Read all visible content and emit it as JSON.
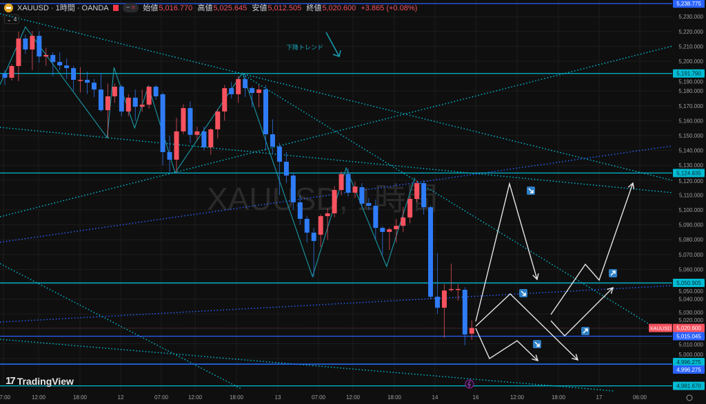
{
  "header": {
    "symbol_title": "XAUUSD · 1時間 · OANDA",
    "open_label": "始値",
    "open": "5,016.770",
    "high_label": "高値",
    "high": "5,025.645",
    "low_label": "安値",
    "low": "5,012.505",
    "close_label": "終値",
    "close": "5,020.600",
    "change": "+3.865 (+0.08%)",
    "indicator_count": "4"
  },
  "watermark": "XAUUSD, 1時間",
  "annotation": {
    "text": "下降トレンド",
    "color": "#17a2b8"
  },
  "branding": "TradingView",
  "colors": {
    "up": "#f7525f",
    "down": "#2f7cf6",
    "cyan": "#00bcd4",
    "blue": "#2962ff",
    "background": "#0f0f0f"
  },
  "chart_data": {
    "type": "candlestick",
    "symbol": "XAUUSD",
    "timeframe": "1時間",
    "ylim": [
      4975,
      5242
    ],
    "y_ticks": [
      5000,
      5010,
      5020,
      5030,
      5040,
      5050,
      5060,
      5070,
      5080,
      5090,
      5100,
      5110,
      5120,
      5130,
      5140,
      5150,
      5160,
      5170,
      5180,
      5190,
      5200,
      5210,
      5220,
      5230
    ],
    "x_tick_labels": [
      "07:00",
      "12:00",
      "18:00",
      "12",
      "07:00",
      "12:00",
      "18:00",
      "13",
      "07:00",
      "12:00",
      "18:00",
      "14",
      "16",
      "12:00",
      "18:00",
      "17",
      "06:00"
    ],
    "candles": [
      [
        5191.7,
        5194,
        5184,
        5188.9
      ],
      [
        5188.9,
        5198,
        5187,
        5196.8
      ],
      [
        5196.8,
        5219.9,
        5186.6,
        5215.3
      ],
      [
        5215.3,
        5218,
        5205,
        5207.9
      ],
      [
        5207.9,
        5220.3,
        5194,
        5217.1
      ],
      [
        5217.1,
        5220.3,
        5199,
        5203.2
      ],
      [
        5203.2,
        5209,
        5197,
        5204.2
      ],
      [
        5204.2,
        5206,
        5190,
        5199.5
      ],
      [
        5199.5,
        5206,
        5194,
        5197.2
      ],
      [
        5197.2,
        5202,
        5188,
        5195.4
      ],
      [
        5195.4,
        5197,
        5180,
        5187.5
      ],
      [
        5187.5,
        5196,
        5179,
        5187.5
      ],
      [
        5187.5,
        5193,
        5178,
        5185.6
      ],
      [
        5185.6,
        5188,
        5176,
        5181.0
      ],
      [
        5181.0,
        5192,
        5166,
        5167.1
      ],
      [
        5167.1,
        5185,
        5148.6,
        5176.4
      ],
      [
        5176.4,
        5185,
        5172,
        5182.9
      ],
      [
        5182.9,
        5184,
        5163,
        5166.2
      ],
      [
        5166.2,
        5178,
        5163,
        5175.5
      ],
      [
        5175.5,
        5181,
        5160,
        5169.4
      ],
      [
        5169.4,
        5181,
        5166,
        5170.8
      ],
      [
        5170.8,
        5183,
        5168,
        5182.9
      ],
      [
        5182.9,
        5184,
        5174,
        5176.4
      ],
      [
        5177.8,
        5179,
        5130,
        5138.9
      ],
      [
        5138.9,
        5150,
        5125.5,
        5133.8
      ],
      [
        5133.8,
        5162,
        5125,
        5152.8
      ],
      [
        5152.8,
        5171,
        5151,
        5168.5
      ],
      [
        5168.5,
        5173,
        5145,
        5150.5
      ],
      [
        5150.5,
        5156,
        5147,
        5152.8
      ],
      [
        5152.8,
        5156,
        5140,
        5142.1
      ],
      [
        5142.1,
        5155,
        5137,
        5154.2
      ],
      [
        5154.2,
        5168,
        5148,
        5166.2
      ],
      [
        5166.2,
        5184,
        5160,
        5181.9
      ],
      [
        5181.9,
        5186,
        5175,
        5177.8
      ],
      [
        5177.8,
        5190,
        5172,
        5188.0
      ],
      [
        5188.0,
        5191,
        5176,
        5181.9
      ],
      [
        5181.9,
        5183,
        5169,
        5178.7
      ],
      [
        5178.7,
        5184,
        5169,
        5181.0
      ],
      [
        5181.0,
        5184,
        5140,
        5150.9
      ],
      [
        5150.9,
        5161,
        5138,
        5142.6
      ],
      [
        5142.6,
        5145,
        5110,
        5132.4
      ],
      [
        5132.4,
        5139,
        5118,
        5123.1
      ],
      [
        5123.1,
        5125,
        5100,
        5105.1
      ],
      [
        5105.1,
        5110,
        5090,
        5094.0
      ],
      [
        5094.0,
        5096,
        5078,
        5084.7
      ],
      [
        5084.7,
        5088,
        5055,
        5079.1
      ],
      [
        5083.3,
        5097,
        5075,
        5095.8
      ],
      [
        5095.8,
        5101,
        5080,
        5097.7
      ],
      [
        5097.7,
        5116,
        5095,
        5113.4
      ],
      [
        5113.4,
        5126,
        5110,
        5124.1
      ],
      [
        5124.1,
        5128,
        5109,
        5111.6
      ],
      [
        5111.6,
        5119,
        5108,
        5115.7
      ],
      [
        5115.3,
        5118,
        5102,
        5104.2
      ],
      [
        5104.6,
        5108,
        5100,
        5102.8
      ],
      [
        5102.8,
        5107,
        5080,
        5087.9
      ],
      [
        5087.9,
        5089,
        5070,
        5085.2
      ],
      [
        5085.2,
        5088,
        5073,
        5087.0
      ],
      [
        5087.0,
        5094,
        5078,
        5089.3
      ],
      [
        5089.3,
        5102,
        5085,
        5094.9
      ],
      [
        5094.9,
        5109,
        5091,
        5107.4
      ],
      [
        5107.4,
        5120,
        5105,
        5118.0
      ],
      [
        5118.0,
        5120,
        5097,
        5101.8
      ],
      [
        5101.8,
        5103,
        5040,
        5041.6
      ],
      [
        5041.6,
        5071,
        5030,
        5034.2
      ],
      [
        5034.2,
        5050,
        5014,
        5045.8
      ],
      [
        5046.3,
        5063.9,
        5045,
        5046.8
      ],
      [
        5046.3,
        5050,
        5039,
        5046.8
      ],
      [
        5046.3,
        5048,
        5009,
        5016.2
      ],
      [
        5016.77,
        5025.645,
        5012.505,
        5020.6
      ]
    ],
    "horizontal_levels": [
      {
        "value": 5238.775,
        "label": "5,238.775",
        "color": "#2962ff"
      },
      {
        "value": 5191.79,
        "label": "5,191.790",
        "color": "#00bcd4"
      },
      {
        "value": 5124.835,
        "label": "5,124.835",
        "color": "#00bcd4"
      },
      {
        "value": 5050.905,
        "label": "5,050.905",
        "color": "#00bcd4"
      },
      {
        "value": 5015.045,
        "label": "5,015.045",
        "color": "#2962ff"
      },
      {
        "value": 4996.275,
        "label": "4,996.275",
        "color": "#00bcd4"
      },
      {
        "value": 4996.275,
        "label": "4,996.275",
        "color": "#2962ff"
      },
      {
        "value": 4981.67,
        "label": "4,981.670",
        "color": "#00bcd4"
      }
    ],
    "current_price": {
      "value": 5020.6,
      "label": "5,020.600",
      "symbol_tag": "XAUUSD",
      "color": "#f7525f"
    },
    "zigzag": [
      [
        -0.7,
        5184.3
      ],
      [
        3,
        5223.1
      ],
      [
        14.9,
        5148.6
      ],
      [
        15.9,
        5195.8
      ],
      [
        18.9,
        5155.1
      ],
      [
        20.9,
        5183.3
      ],
      [
        24.8,
        5125.0
      ],
      [
        34.6,
        5192.1
      ],
      [
        44.8,
        5055.1
      ],
      [
        49.7,
        5128.2
      ],
      [
        55.6,
        5062.0
      ],
      [
        59.7,
        5121.7
      ]
    ],
    "forecast_icons": [
      "arrow-down-right",
      "arrow-down-right",
      "arrow-down-right",
      "arrow-up-right",
      "arrow-up-right"
    ]
  }
}
